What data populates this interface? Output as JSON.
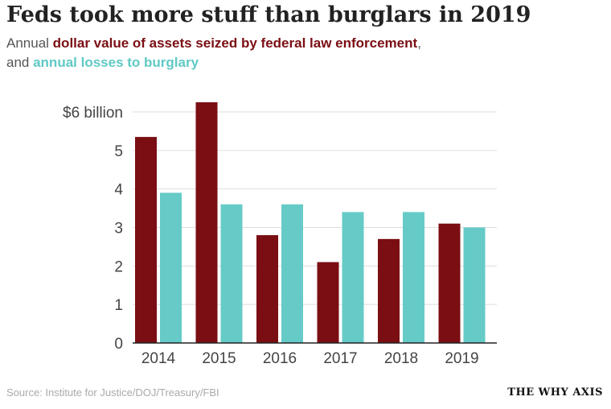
{
  "header": {
    "title": "Feds took more stuff than burglars in 2019",
    "subtitle_prefix": "Annual ",
    "subtitle_highlight_seized": "dollar value of assets seized by federal law enforcement",
    "subtitle_comma": ",",
    "subtitle_and": "and ",
    "subtitle_highlight_burglary": "annual losses to burglary"
  },
  "footer": {
    "source": "Source: Institute for Justice/DOJ/Treasury/FBI",
    "brand": "THE WHY AXIS"
  },
  "colors": {
    "seized": "#7a0e13",
    "burglary": "#66cbc7",
    "grid": "#dddddd",
    "axis": "#222222"
  },
  "chart_data": {
    "type": "bar",
    "title": "Feds took more stuff than burglars in 2019",
    "categories": [
      "2014",
      "2015",
      "2016",
      "2017",
      "2018",
      "2019"
    ],
    "series": [
      {
        "name": "dollar value of assets seized by federal law enforcement",
        "values": [
          5.35,
          6.25,
          2.8,
          2.1,
          2.7,
          3.1
        ]
      },
      {
        "name": "annual losses to burglary",
        "values": [
          3.9,
          3.6,
          3.6,
          3.4,
          3.4,
          3.0
        ]
      }
    ],
    "ylim": [
      0,
      6
    ],
    "yticks": [
      {
        "value": 6,
        "label": "$6 billion"
      },
      {
        "value": 5,
        "label": "5"
      },
      {
        "value": 4,
        "label": "4"
      },
      {
        "value": 3,
        "label": "3"
      },
      {
        "value": 2,
        "label": "2"
      },
      {
        "value": 1,
        "label": "1"
      },
      {
        "value": 0,
        "label": "0"
      }
    ],
    "xlabel": "",
    "ylabel": "",
    "grid": true,
    "legend": "none (series colours explained in subtitle)"
  }
}
